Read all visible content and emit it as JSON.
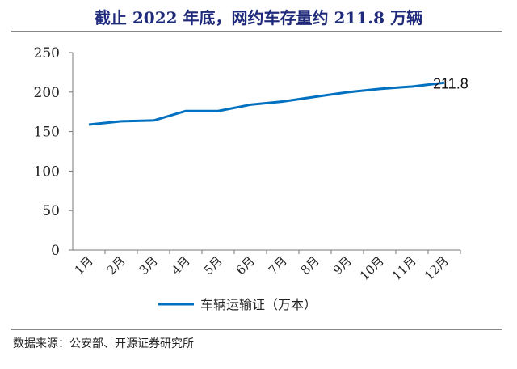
{
  "title": "截止 2022 年底，网约车存量约 211.8 万辆",
  "source": "数据来源：公安部、开源证券研究所",
  "chart_data": {
    "type": "line",
    "categories": [
      "1月",
      "2月",
      "3月",
      "4月",
      "5月",
      "6月",
      "7月",
      "8月",
      "9月",
      "10月",
      "11月",
      "12月"
    ],
    "series": [
      {
        "name": "车辆运输证（万本）",
        "values": [
          158.8,
          163,
          164,
          176,
          176,
          184,
          188,
          194,
          199.8,
          204,
          207,
          211.8
        ],
        "color": "#0070c0"
      }
    ],
    "yticks": [
      0,
      50,
      100,
      150,
      200,
      250
    ],
    "ylim": [
      0,
      250
    ],
    "annotations": [
      {
        "category": "12月",
        "text": "211.8"
      }
    ],
    "legend": "bottom",
    "grid": false
  }
}
